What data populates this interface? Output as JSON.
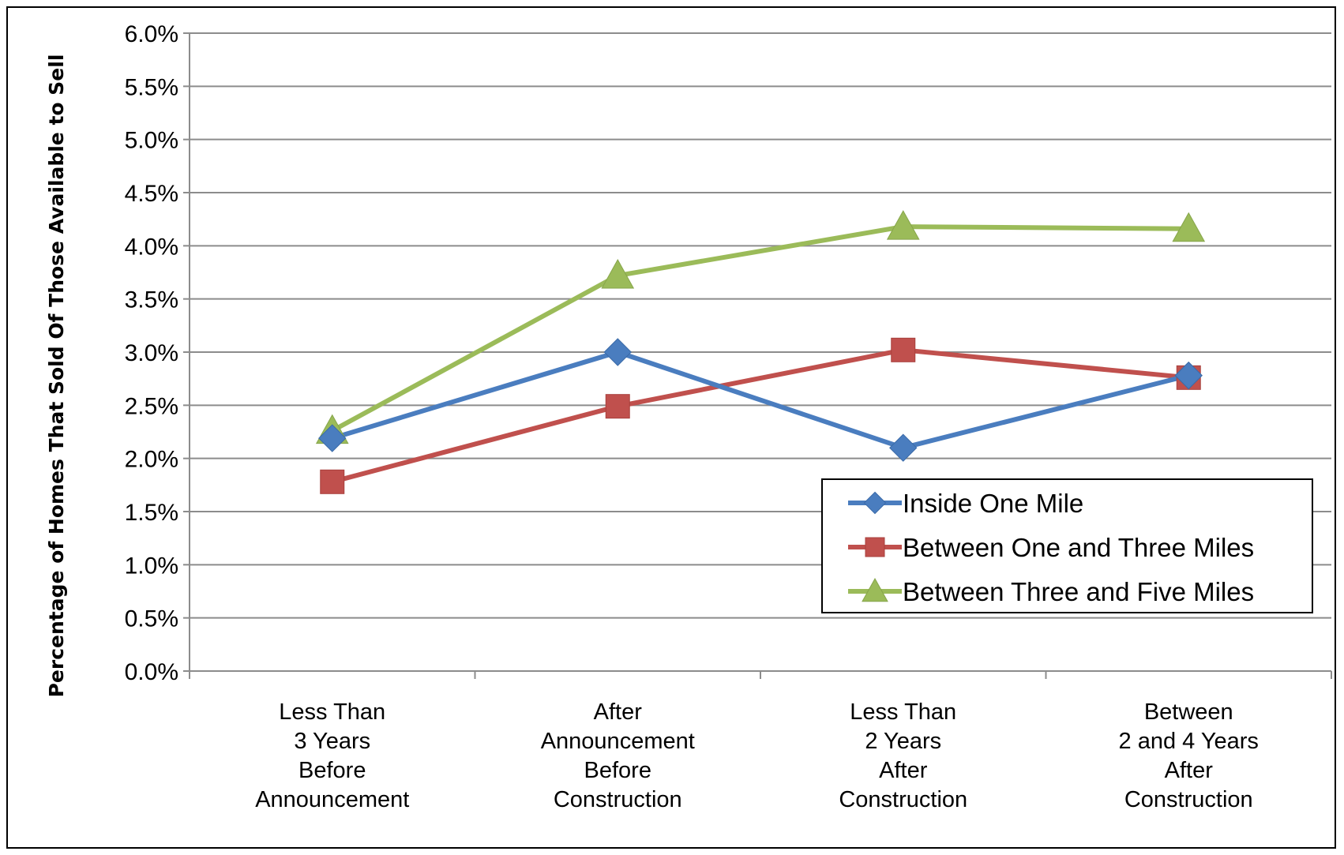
{
  "chart_data": {
    "type": "line",
    "title": "",
    "ylabel": "Percentage of Homes That Sold Of Those Available to Sell",
    "xlabel": "",
    "ylim": [
      0,
      0.06
    ],
    "yticks": [
      "0.0%",
      "0.5%",
      "1.0%",
      "1.5%",
      "2.0%",
      "2.5%",
      "3.0%",
      "3.5%",
      "4.0%",
      "4.5%",
      "5.0%",
      "5.5%",
      "6.0%"
    ],
    "categories": [
      [
        "Less Than",
        "3 Years",
        "Before",
        "Announcement"
      ],
      [
        "After",
        "Announcement",
        "Before",
        "Construction"
      ],
      [
        "Less Than",
        "2 Years",
        "After",
        "Construction"
      ],
      [
        "Between",
        "2 and 4 Years",
        "After",
        "Construction"
      ]
    ],
    "grid": true,
    "legend_position": "lower-right",
    "series": [
      {
        "name": "Inside One Mile",
        "values": [
          0.0219,
          0.03,
          0.021,
          0.0278
        ],
        "color": "#4a7dbf",
        "marker": "diamond"
      },
      {
        "name": "Between One and Three Miles",
        "values": [
          0.0178,
          0.0249,
          0.0302,
          0.0276
        ],
        "color": "#c0504d",
        "marker": "square"
      },
      {
        "name": "Between Three and Five Miles",
        "values": [
          0.0226,
          0.0372,
          0.0418,
          0.0416
        ],
        "color": "#9bbb59",
        "marker": "triangle"
      }
    ]
  }
}
